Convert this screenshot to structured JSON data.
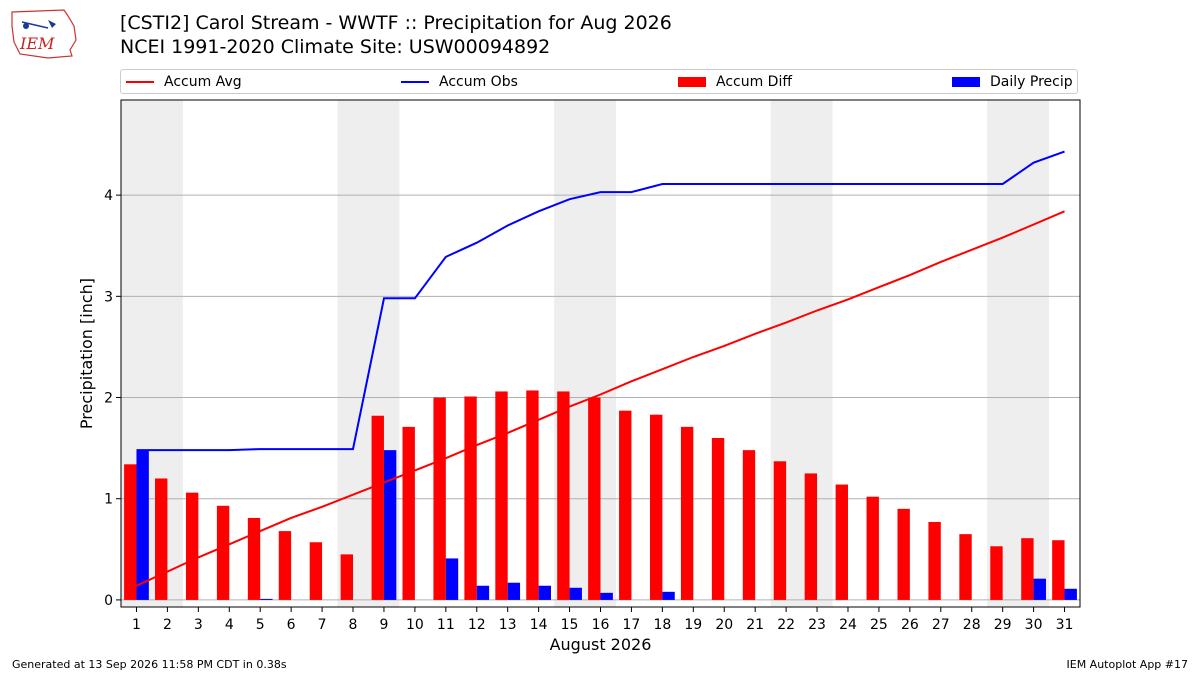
{
  "logo": {
    "text": "IEM",
    "name": "iem-logo"
  },
  "header": {
    "title_line1": "[CSTI2] Carol Stream - WWTF :: Precipitation for Aug 2026",
    "title_line2": "NCEI 1991-2020 Climate Site: USW00094892"
  },
  "footer": {
    "left": "Generated at 13 Sep 2026 11:58 PM CDT in 0.38s",
    "right": "IEM Autoplot App #17"
  },
  "legend": [
    {
      "label": "Accum Avg",
      "kind": "line",
      "color": "#ff0000"
    },
    {
      "label": "Accum Obs",
      "kind": "line",
      "color": "#0000ff"
    },
    {
      "label": "Accum Diff",
      "kind": "bar",
      "color": "#ff0000"
    },
    {
      "label": "Daily Precip",
      "kind": "bar",
      "color": "#0000ff"
    }
  ],
  "chart_data": {
    "type": "bar",
    "xlabel": "August 2026",
    "ylabel": "Precipitation [inch]",
    "x": [
      1,
      2,
      3,
      4,
      5,
      6,
      7,
      8,
      9,
      10,
      11,
      12,
      13,
      14,
      15,
      16,
      17,
      18,
      19,
      20,
      21,
      22,
      23,
      24,
      25,
      26,
      27,
      28,
      29,
      30,
      31
    ],
    "ylim": [
      -0.07,
      4.94
    ],
    "yticks": [
      0,
      1,
      2,
      3,
      4
    ],
    "grid": "horizontal",
    "legend_placement": "top",
    "weekend_shading": [
      [
        1,
        2
      ],
      [
        8,
        9
      ],
      [
        15,
        16
      ],
      [
        22,
        23
      ],
      [
        29,
        30
      ]
    ],
    "series": [
      {
        "name": "Accum Avg",
        "kind": "line",
        "color": "#ff0000",
        "values": [
          0.14,
          0.28,
          0.42,
          0.55,
          0.68,
          0.81,
          0.92,
          1.04,
          1.16,
          1.28,
          1.4,
          1.53,
          1.65,
          1.78,
          1.91,
          2.03,
          2.16,
          2.28,
          2.4,
          2.51,
          2.63,
          2.74,
          2.86,
          2.97,
          3.09,
          3.21,
          3.34,
          3.46,
          3.58,
          3.71,
          3.84
        ]
      },
      {
        "name": "Accum Obs",
        "kind": "line",
        "color": "#0000ff",
        "values": [
          1.48,
          1.48,
          1.48,
          1.48,
          1.49,
          1.49,
          1.49,
          1.49,
          2.98,
          2.98,
          3.39,
          3.53,
          3.7,
          3.84,
          3.96,
          4.03,
          4.03,
          4.11,
          4.11,
          4.11,
          4.11,
          4.11,
          4.11,
          4.11,
          4.11,
          4.11,
          4.11,
          4.11,
          4.11,
          4.32,
          4.43
        ]
      },
      {
        "name": "Accum Diff",
        "kind": "bar",
        "color": "#ff0000",
        "values": [
          1.34,
          1.2,
          1.06,
          0.93,
          0.81,
          0.68,
          0.57,
          0.45,
          1.82,
          1.71,
          2.0,
          2.01,
          2.06,
          2.07,
          2.06,
          2.0,
          1.87,
          1.83,
          1.71,
          1.6,
          1.48,
          1.37,
          1.25,
          1.14,
          1.02,
          0.9,
          0.77,
          0.65,
          0.53,
          0.61,
          0.59
        ]
      },
      {
        "name": "Daily Precip",
        "kind": "bar",
        "color": "#0000ff",
        "values": [
          1.48,
          0,
          0,
          0,
          0.01,
          0,
          0,
          0,
          1.48,
          0,
          0.41,
          0.14,
          0.17,
          0.14,
          0.12,
          0.07,
          0,
          0.08,
          0,
          0,
          0,
          0,
          0,
          0,
          0,
          0,
          0,
          0,
          0,
          0.21,
          0.11
        ]
      }
    ]
  }
}
